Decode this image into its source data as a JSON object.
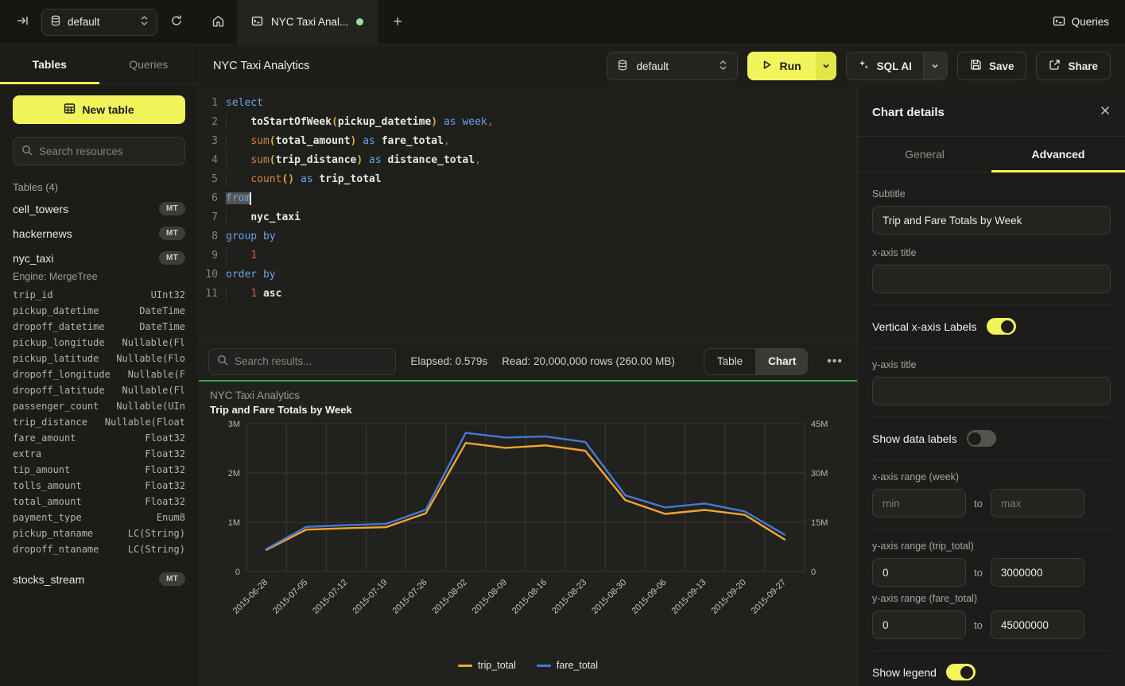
{
  "colors": {
    "accent_yellow": "#f2f45c",
    "green_dot": "#97e0a4",
    "green_bar": "#3f9d4a",
    "trip_total_line": "#f0a62f",
    "fare_total_line": "#4579d7"
  },
  "topbar": {
    "database_selector": "default",
    "tab_title": "NYC Taxi Anal...",
    "queries_label": "Queries"
  },
  "sidebar": {
    "tabs": [
      {
        "label": "Tables",
        "active": true
      },
      {
        "label": "Queries",
        "active": false
      }
    ],
    "new_table_label": "New table",
    "search_placeholder": "Search resources",
    "section_label": "Tables (4)",
    "tables": [
      {
        "name": "cell_towers",
        "badge": "MT"
      },
      {
        "name": "hackernews",
        "badge": "MT"
      },
      {
        "name": "nyc_taxi",
        "badge": "MT"
      },
      {
        "name": "stocks_stream",
        "badge": "MT"
      }
    ],
    "nyc_taxi_engine": "Engine: MergeTree",
    "nyc_taxi_columns": [
      {
        "name": "trip_id",
        "type": "UInt32"
      },
      {
        "name": "pickup_datetime",
        "type": "DateTime"
      },
      {
        "name": "dropoff_datetime",
        "type": "DateTime"
      },
      {
        "name": "pickup_longitude",
        "type": "Nullable(Fl"
      },
      {
        "name": "pickup_latitude",
        "type": "Nullable(Flo"
      },
      {
        "name": "dropoff_longitude",
        "type": "Nullable(F"
      },
      {
        "name": "dropoff_latitude",
        "type": "Nullable(Fl"
      },
      {
        "name": "passenger_count",
        "type": "Nullable(UIn"
      },
      {
        "name": "trip_distance",
        "type": "Nullable(Float"
      },
      {
        "name": "fare_amount",
        "type": "Float32"
      },
      {
        "name": "extra",
        "type": "Float32"
      },
      {
        "name": "tip_amount",
        "type": "Float32"
      },
      {
        "name": "tolls_amount",
        "type": "Float32"
      },
      {
        "name": "total_amount",
        "type": "Float32"
      },
      {
        "name": "payment_type",
        "type": "Enum8"
      },
      {
        "name": "pickup_ntaname",
        "type": "LC(String)"
      },
      {
        "name": "dropoff_ntaname",
        "type": "LC(String)"
      }
    ]
  },
  "toolbar": {
    "title": "NYC Taxi Analytics",
    "database_selector": "default",
    "run_label": "Run",
    "sql_ai_label": "SQL AI",
    "save_label": "Save",
    "share_label": "Share"
  },
  "editor": {
    "lines": [
      {
        "n": "1",
        "tokens": [
          [
            "kw",
            "select"
          ]
        ]
      },
      {
        "n": "2",
        "tokens": [
          [
            "pl",
            "    "
          ],
          [
            "id",
            "toStartOfWeek"
          ],
          [
            "par",
            "("
          ],
          [
            "id",
            "pickup_datetime"
          ],
          [
            "par",
            ")"
          ],
          [
            "pl",
            " "
          ],
          [
            "kw",
            "as"
          ],
          [
            "pl",
            " "
          ],
          [
            "kw",
            "week"
          ],
          [
            "pun",
            ","
          ]
        ]
      },
      {
        "n": "3",
        "tokens": [
          [
            "pl",
            "    "
          ],
          [
            "fn",
            "sum"
          ],
          [
            "par",
            "("
          ],
          [
            "id",
            "total_amount"
          ],
          [
            "par",
            ")"
          ],
          [
            "pl",
            " "
          ],
          [
            "kw",
            "as"
          ],
          [
            "pl",
            " "
          ],
          [
            "id",
            "fare_total"
          ],
          [
            "pun",
            ","
          ]
        ]
      },
      {
        "n": "4",
        "tokens": [
          [
            "pl",
            "    "
          ],
          [
            "fn",
            "sum"
          ],
          [
            "par",
            "("
          ],
          [
            "id",
            "trip_distance"
          ],
          [
            "par",
            ")"
          ],
          [
            "pl",
            " "
          ],
          [
            "kw",
            "as"
          ],
          [
            "pl",
            " "
          ],
          [
            "id",
            "distance_total"
          ],
          [
            "pun",
            ","
          ]
        ]
      },
      {
        "n": "5",
        "tokens": [
          [
            "pl",
            "    "
          ],
          [
            "fn",
            "count"
          ],
          [
            "par",
            "()"
          ],
          [
            "pl",
            " "
          ],
          [
            "kw",
            "as"
          ],
          [
            "pl",
            " "
          ],
          [
            "id",
            "trip_total"
          ]
        ]
      },
      {
        "n": "6",
        "tokens": [
          [
            "kw",
            "from"
          ]
        ],
        "cursor": true
      },
      {
        "n": "7",
        "tokens": [
          [
            "pl",
            "    "
          ],
          [
            "id",
            "nyc_taxi"
          ]
        ]
      },
      {
        "n": "8",
        "tokens": [
          [
            "kw",
            "group by"
          ]
        ]
      },
      {
        "n": "9",
        "tokens": [
          [
            "pl",
            "    "
          ],
          [
            "num",
            "1"
          ]
        ]
      },
      {
        "n": "10",
        "tokens": [
          [
            "kw",
            "order by"
          ]
        ]
      },
      {
        "n": "11",
        "tokens": [
          [
            "pl",
            "    "
          ],
          [
            "num",
            "1"
          ],
          [
            "pl",
            " "
          ],
          [
            "id",
            "asc"
          ]
        ]
      }
    ]
  },
  "results_bar": {
    "search_placeholder": "Search results...",
    "elapsed": "Elapsed: 0.579s",
    "read": "Read: 20,000,000 rows (260.00 MB)",
    "view_toggle": [
      {
        "label": "Table",
        "active": false
      },
      {
        "label": "Chart",
        "active": true
      }
    ],
    "more_label": "•••"
  },
  "chart_data": {
    "type": "line",
    "title": "NYC Taxi Analytics",
    "subtitle": "Trip and Fare Totals by Week",
    "x": [
      "2015-06-28",
      "2015-07-05",
      "2015-07-12",
      "2015-07-19",
      "2015-07-26",
      "2015-08-02",
      "2015-08-09",
      "2015-08-16",
      "2015-08-23",
      "2015-08-30",
      "2015-09-06",
      "2015-09-13",
      "2015-09-20",
      "2015-09-27"
    ],
    "series": [
      {
        "name": "trip_total",
        "color": "#f0a62f",
        "axis": "left",
        "values": [
          440000,
          850000,
          880000,
          900000,
          1180000,
          2610000,
          2510000,
          2560000,
          2450000,
          1450000,
          1170000,
          1250000,
          1150000,
          650000
        ]
      },
      {
        "name": "fare_total",
        "color": "#4579d7",
        "axis": "right",
        "values": [
          6900000,
          13600000,
          14100000,
          14500000,
          18800000,
          42200000,
          40800000,
          41100000,
          39400000,
          23200000,
          19500000,
          20700000,
          18300000,
          11200000
        ]
      }
    ],
    "left_axis": {
      "ticks": [
        "0",
        "1M",
        "2M",
        "3M"
      ],
      "min": 0,
      "max": 3000000
    },
    "right_axis": {
      "ticks": [
        "0",
        "15M",
        "30M",
        "45M"
      ],
      "min": 0,
      "max": 45000000
    },
    "grid": true,
    "legend_position": "bottom",
    "x_labels_rotated": true
  },
  "panel": {
    "title": "Chart details",
    "tabs": [
      {
        "label": "General",
        "active": false
      },
      {
        "label": "Advanced",
        "active": true
      }
    ],
    "subtitle_label": "Subtitle",
    "subtitle_value": "Trip and Fare Totals by Week",
    "x_axis_title_label": "x-axis title",
    "x_axis_title_value": "",
    "vertical_labels_label": "Vertical x-axis Labels",
    "vertical_labels_on": true,
    "y_axis_title_label": "y-axis title",
    "y_axis_title_value": "",
    "show_data_labels_label": "Show data labels",
    "show_data_labels_on": false,
    "x_range_label": "x-axis range (week)",
    "x_range_min_placeholder": "min",
    "x_range_max_placeholder": "max",
    "to_label": "to",
    "y_range_trip_label": "y-axis range (trip_total)",
    "y_range_trip_min": "0",
    "y_range_trip_max": "3000000",
    "y_range_fare_label": "y-axis range (fare_total)",
    "y_range_fare_min": "0",
    "y_range_fare_max": "45000000",
    "show_legend_label": "Show legend",
    "show_legend_on": true
  }
}
